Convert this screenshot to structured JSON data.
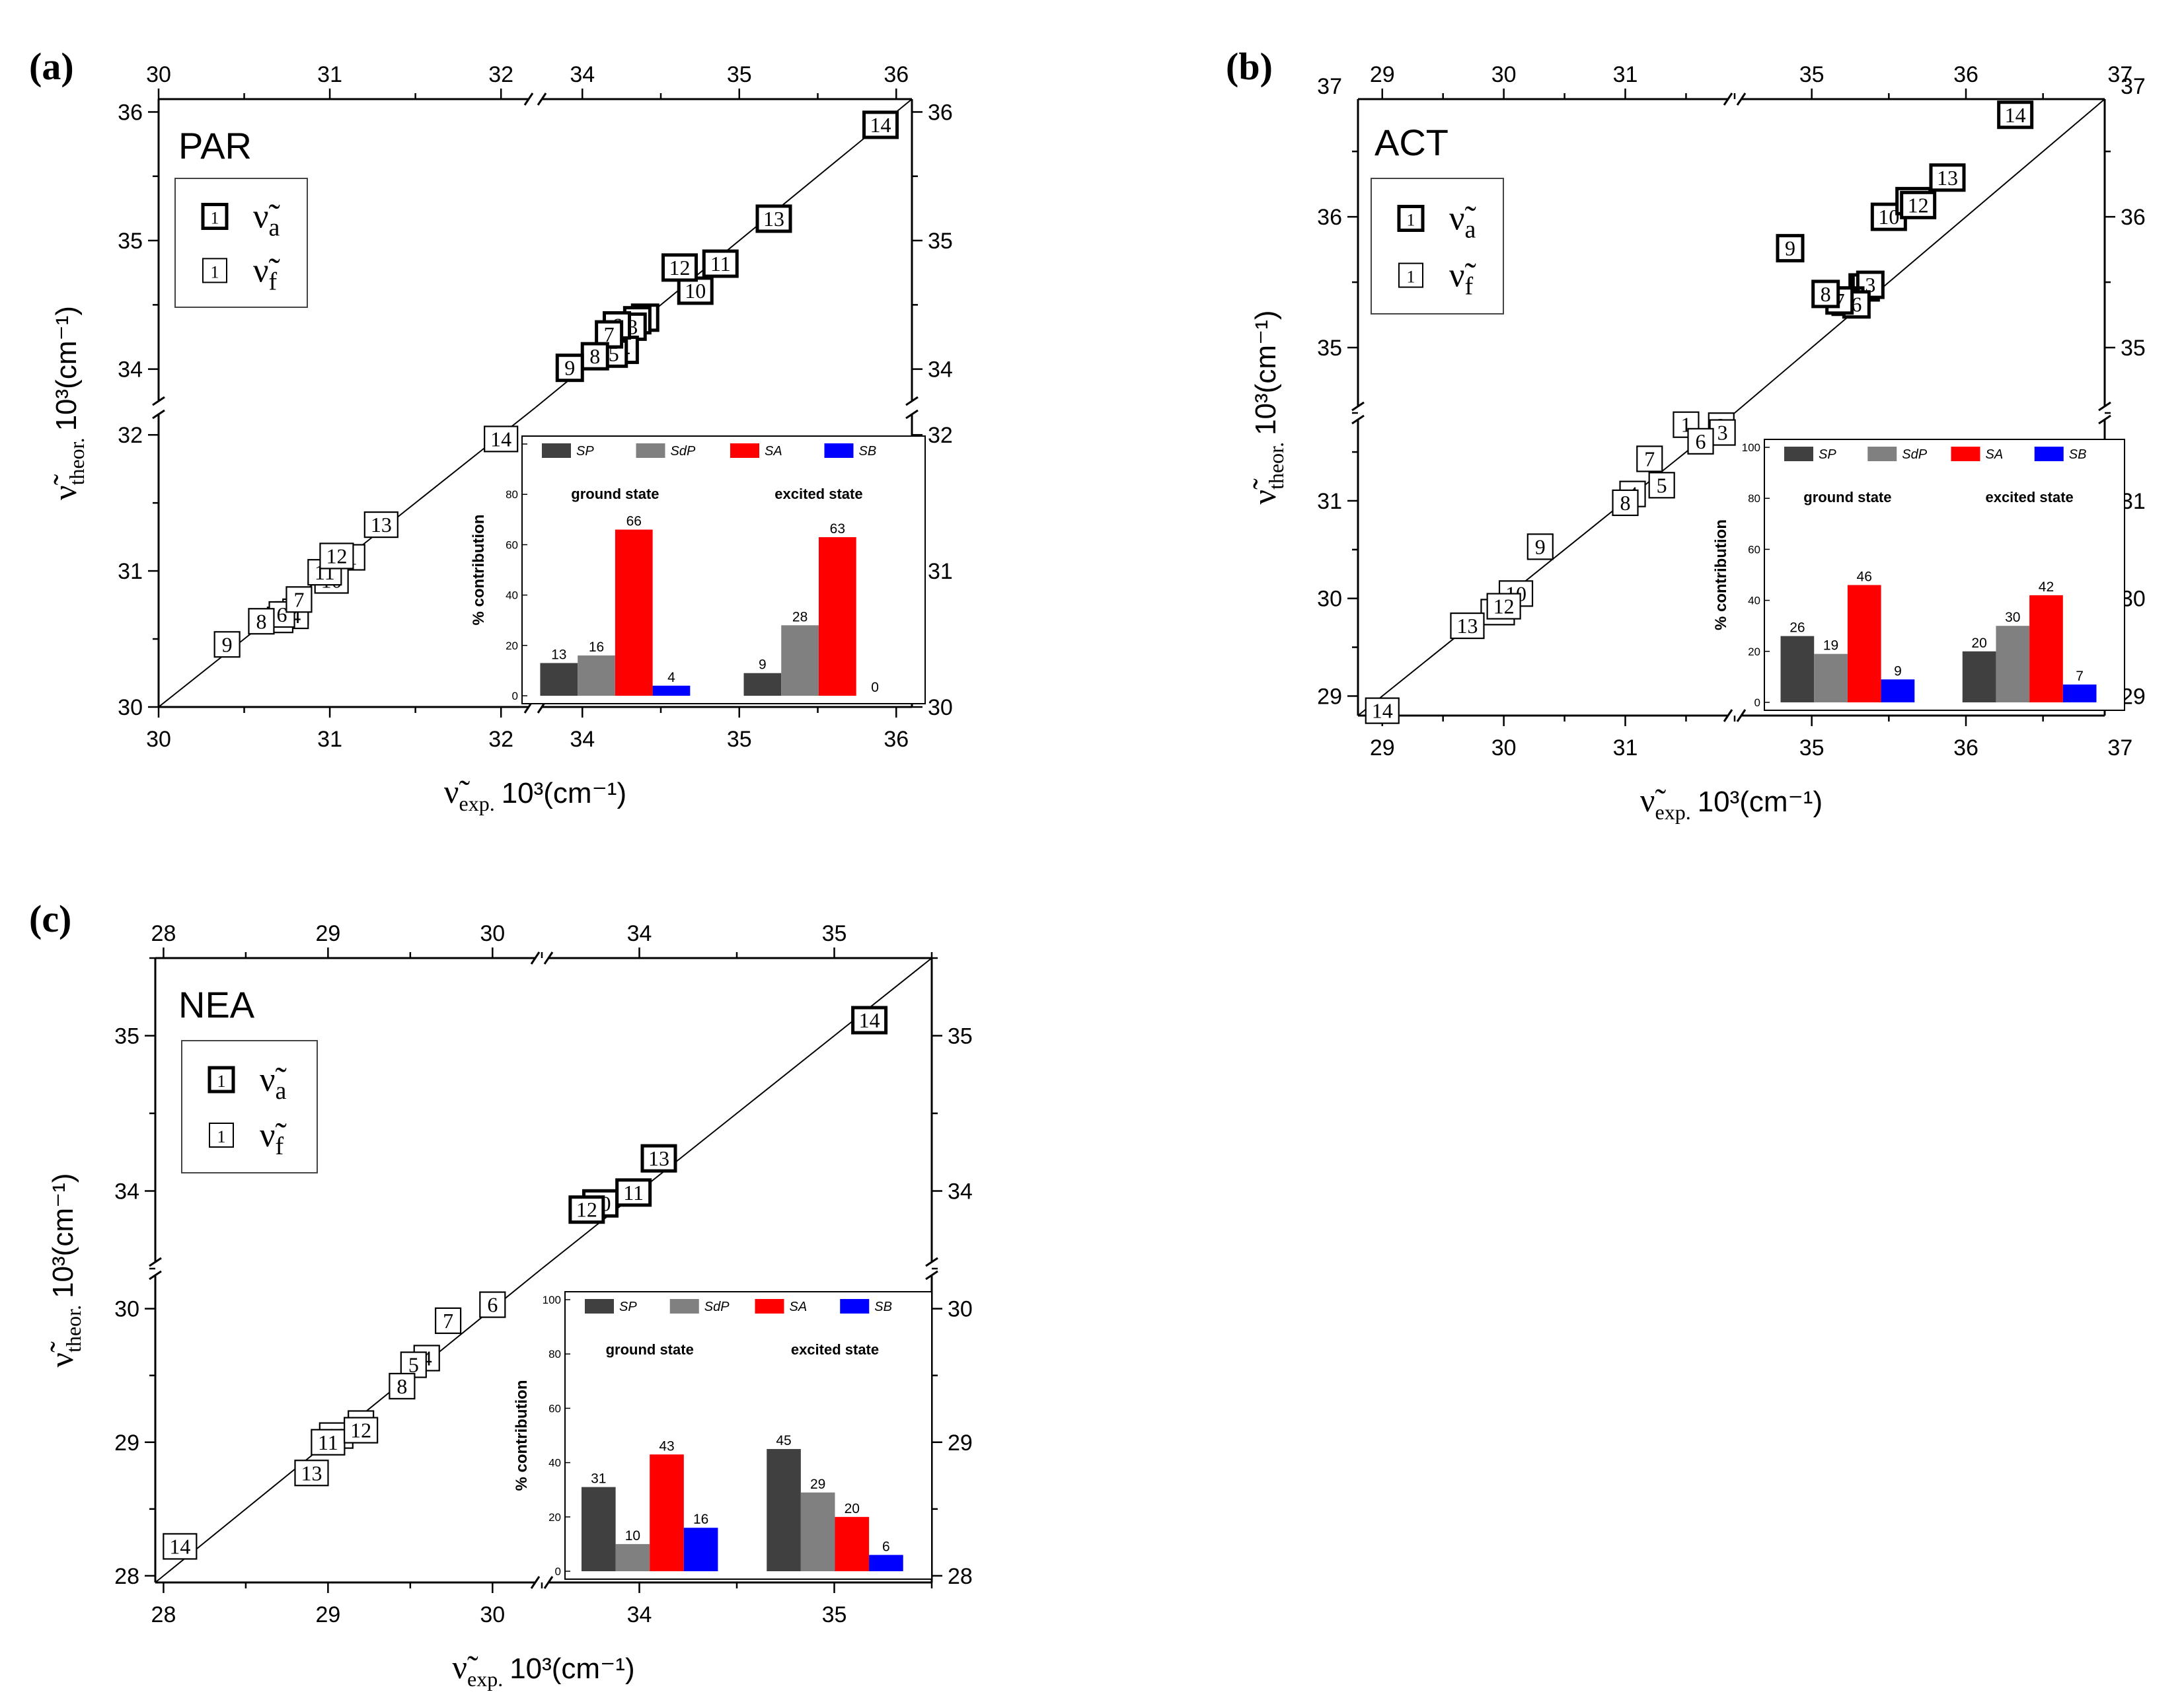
{
  "figure": {
    "xlabel_main": "ν̃",
    "xlabel_sub": "exp.",
    "xlabel_unit": "10³(cm⁻¹)",
    "ylabel_main": "ν̃",
    "ylabel_sub": "theor.",
    "ylabel_unit": "10³(cm⁻¹)",
    "legend_marker_label": "1",
    "legend_absorption_symbol": "ν̃",
    "legend_absorption_sub": "a",
    "legend_fluorescence_symbol": "ν̃",
    "legend_fluorescence_sub": "f",
    "inset_ylabel": "% contribution",
    "inset_group_labels": [
      "ground state",
      "excited state"
    ],
    "inset_legend": [
      "SP",
      "SdP",
      "SA",
      "SB"
    ],
    "inset_yticks": [
      "0",
      "20",
      "40",
      "60",
      "80",
      "100"
    ],
    "colors": {
      "SP": "#404040",
      "SdP": "#808080",
      "SA": "#ff0000",
      "SB": "#0000ff",
      "axis": "#000000"
    }
  },
  "chart_data": [
    {
      "panel": "(a)",
      "title": "PAR",
      "type": "scatter",
      "lower_range": [
        30,
        32.2
      ],
      "upper_range": [
        33.7,
        36.1
      ],
      "lower_ticks": [
        "30",
        "31",
        "32"
      ],
      "upper_ticks": [
        "34",
        "35",
        "36"
      ],
      "absorption": [
        {
          "label": "1",
          "x": 34.4,
          "y": 34.4
        },
        {
          "label": "2",
          "x": 34.35,
          "y": 34.38
        },
        {
          "label": "3",
          "x": 34.32,
          "y": 34.33
        },
        {
          "label": "4",
          "x": 34.27,
          "y": 34.15
        },
        {
          "label": "5",
          "x": 34.2,
          "y": 34.12
        },
        {
          "label": "6",
          "x": 34.22,
          "y": 34.34
        },
        {
          "label": "7",
          "x": 34.17,
          "y": 34.27
        },
        {
          "label": "8",
          "x": 34.08,
          "y": 34.1
        },
        {
          "label": "9",
          "x": 33.92,
          "y": 34.01
        },
        {
          "label": "10",
          "x": 34.72,
          "y": 34.61
        },
        {
          "label": "11",
          "x": 34.88,
          "y": 34.82
        },
        {
          "label": "12",
          "x": 34.62,
          "y": 34.79
        },
        {
          "label": "13",
          "x": 35.22,
          "y": 35.17
        },
        {
          "label": "14",
          "x": 35.9,
          "y": 35.9
        }
      ],
      "fluorescence": [
        {
          "label": "1",
          "x": 31.13,
          "y": 31.1
        },
        {
          "label": "2",
          "x": 30.76,
          "y": 30.68
        },
        {
          "label": "3",
          "x": 30.8,
          "y": 30.7
        },
        {
          "label": "4",
          "x": 30.8,
          "y": 30.67
        },
        {
          "label": "5",
          "x": 30.71,
          "y": 30.64
        },
        {
          "label": "6",
          "x": 30.72,
          "y": 30.68
        },
        {
          "label": "7",
          "x": 30.82,
          "y": 30.79
        },
        {
          "label": "8",
          "x": 30.6,
          "y": 30.63
        },
        {
          "label": "9",
          "x": 30.4,
          "y": 30.46
        },
        {
          "label": "10",
          "x": 31.01,
          "y": 30.93
        },
        {
          "label": "11",
          "x": 30.97,
          "y": 30.99
        },
        {
          "label": "12",
          "x": 31.04,
          "y": 31.11
        },
        {
          "label": "13",
          "x": 31.3,
          "y": 31.34
        },
        {
          "label": "14",
          "x": 32.0,
          "y": 31.97
        }
      ],
      "contributions": {
        "ground": [
          13,
          16,
          66,
          4
        ],
        "excited": [
          9,
          28,
          63,
          0
        ]
      }
    },
    {
      "panel": "(b)",
      "title": "ACT",
      "type": "scatter",
      "lower_range": [
        28.8,
        31.9
      ],
      "upper_range": [
        34.5,
        36.9
      ],
      "lower_ticks": [
        "29",
        "30",
        "31"
      ],
      "upper_ticks": [
        "35",
        "36",
        "37"
      ],
      "absorption": [
        {
          "label": "1",
          "x": 35.33,
          "y": 35.46
        },
        {
          "label": "2",
          "x": 35.35,
          "y": 35.46
        },
        {
          "label": "3",
          "x": 35.38,
          "y": 35.48
        },
        {
          "label": "4",
          "x": 35.25,
          "y": 35.36
        },
        {
          "label": "5",
          "x": 35.22,
          "y": 35.35
        },
        {
          "label": "6",
          "x": 35.29,
          "y": 35.33
        },
        {
          "label": "7",
          "x": 35.18,
          "y": 35.36
        },
        {
          "label": "8",
          "x": 35.09,
          "y": 35.41
        },
        {
          "label": "9",
          "x": 34.86,
          "y": 35.76
        },
        {
          "label": "10",
          "x": 35.5,
          "y": 36.0
        },
        {
          "label": "11",
          "x": 35.66,
          "y": 36.12
        },
        {
          "label": "12",
          "x": 35.69,
          "y": 36.09
        },
        {
          "label": "13",
          "x": 35.88,
          "y": 36.3
        },
        {
          "label": "14",
          "x": 36.32,
          "y": 36.78
        }
      ],
      "fluorescence": [
        {
          "label": "1",
          "x": 31.5,
          "y": 31.78
        },
        {
          "label": "2",
          "x": 31.79,
          "y": 31.77
        },
        {
          "label": "3",
          "x": 31.8,
          "y": 31.7
        },
        {
          "label": "4",
          "x": 31.06,
          "y": 31.07
        },
        {
          "label": "5",
          "x": 31.3,
          "y": 31.16
        },
        {
          "label": "6",
          "x": 31.62,
          "y": 31.61
        },
        {
          "label": "7",
          "x": 31.2,
          "y": 31.43
        },
        {
          "label": "8",
          "x": 31.0,
          "y": 30.98
        },
        {
          "label": "9",
          "x": 30.3,
          "y": 30.53
        },
        {
          "label": "10",
          "x": 30.1,
          "y": 30.05
        },
        {
          "label": "11",
          "x": 29.95,
          "y": 29.86
        },
        {
          "label": "12",
          "x": 30.0,
          "y": 29.92
        },
        {
          "label": "13",
          "x": 29.7,
          "y": 29.72
        },
        {
          "label": "14",
          "x": 29.0,
          "y": 28.85
        }
      ],
      "contributions": {
        "ground": [
          26,
          19,
          46,
          9
        ],
        "excited": [
          20,
          30,
          42,
          7
        ]
      }
    },
    {
      "panel": "(c)",
      "title": "NEA",
      "type": "scatter",
      "lower_range": [
        27.95,
        30.3
      ],
      "upper_range": [
        33.5,
        35.5
      ],
      "lower_ticks": [
        "28",
        "29",
        "30"
      ],
      "upper_ticks": [
        "34",
        "35"
      ],
      "absorption": [
        {
          "label": "10",
          "x": 33.8,
          "y": 33.92
        },
        {
          "label": "11",
          "x": 33.97,
          "y": 33.99
        },
        {
          "label": "12",
          "x": 33.73,
          "y": 33.88
        },
        {
          "label": "13",
          "x": 34.1,
          "y": 34.21
        },
        {
          "label": "14",
          "x": 35.18,
          "y": 35.1
        }
      ],
      "fluorescence": [
        {
          "label": "4",
          "x": 29.6,
          "y": 29.63
        },
        {
          "label": "5",
          "x": 29.52,
          "y": 29.58
        },
        {
          "label": "6",
          "x": 30.0,
          "y": 30.03
        },
        {
          "label": "7",
          "x": 29.73,
          "y": 29.91
        },
        {
          "label": "8",
          "x": 29.45,
          "y": 29.42
        },
        {
          "label": "9",
          "x": 29.2,
          "y": 29.14
        },
        {
          "label": "10",
          "x": 29.05,
          "y": 29.05
        },
        {
          "label": "11",
          "x": 29.0,
          "y": 29.0
        },
        {
          "label": "12",
          "x": 29.2,
          "y": 29.09
        },
        {
          "label": "13",
          "x": 28.9,
          "y": 28.77
        },
        {
          "label": "14",
          "x": 28.1,
          "y": 28.22
        }
      ],
      "contributions": {
        "ground": [
          31,
          10,
          43,
          16
        ],
        "excited": [
          45,
          29,
          20,
          6
        ]
      }
    }
  ]
}
